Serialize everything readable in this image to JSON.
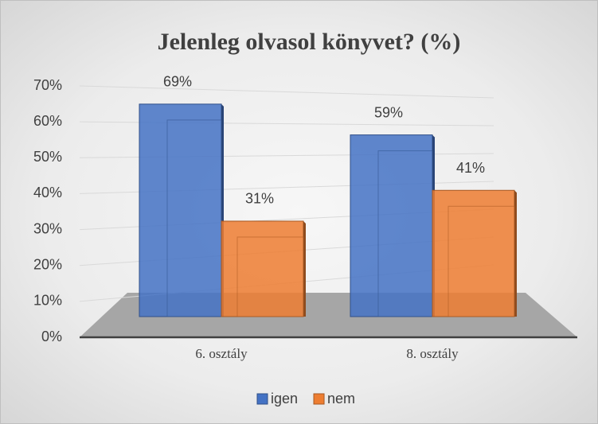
{
  "chart_data": {
    "type": "bar3d",
    "title": "Jelenleg olvasol könyvet? (%)",
    "categories": [
      "6. osztály",
      "8. osztály"
    ],
    "series": [
      {
        "name": "igen",
        "color": "#4472c4",
        "values": [
          69,
          59
        ],
        "value_labels": [
          "69%",
          "59%"
        ]
      },
      {
        "name": "nem",
        "color": "#ed7d31",
        "values": [
          31,
          41
        ],
        "value_labels": [
          "31%",
          "41%"
        ]
      }
    ],
    "ylim": [
      0,
      70
    ],
    "yticks": [
      {
        "value": 0,
        "label": "0%"
      },
      {
        "value": 10,
        "label": "10%"
      },
      {
        "value": 20,
        "label": "20%"
      },
      {
        "value": 30,
        "label": "30%"
      },
      {
        "value": 40,
        "label": "40%"
      },
      {
        "value": 50,
        "label": "50%"
      },
      {
        "value": 60,
        "label": "60%"
      },
      {
        "value": 70,
        "label": "70%"
      }
    ],
    "grid": true,
    "legend": "bottom"
  }
}
